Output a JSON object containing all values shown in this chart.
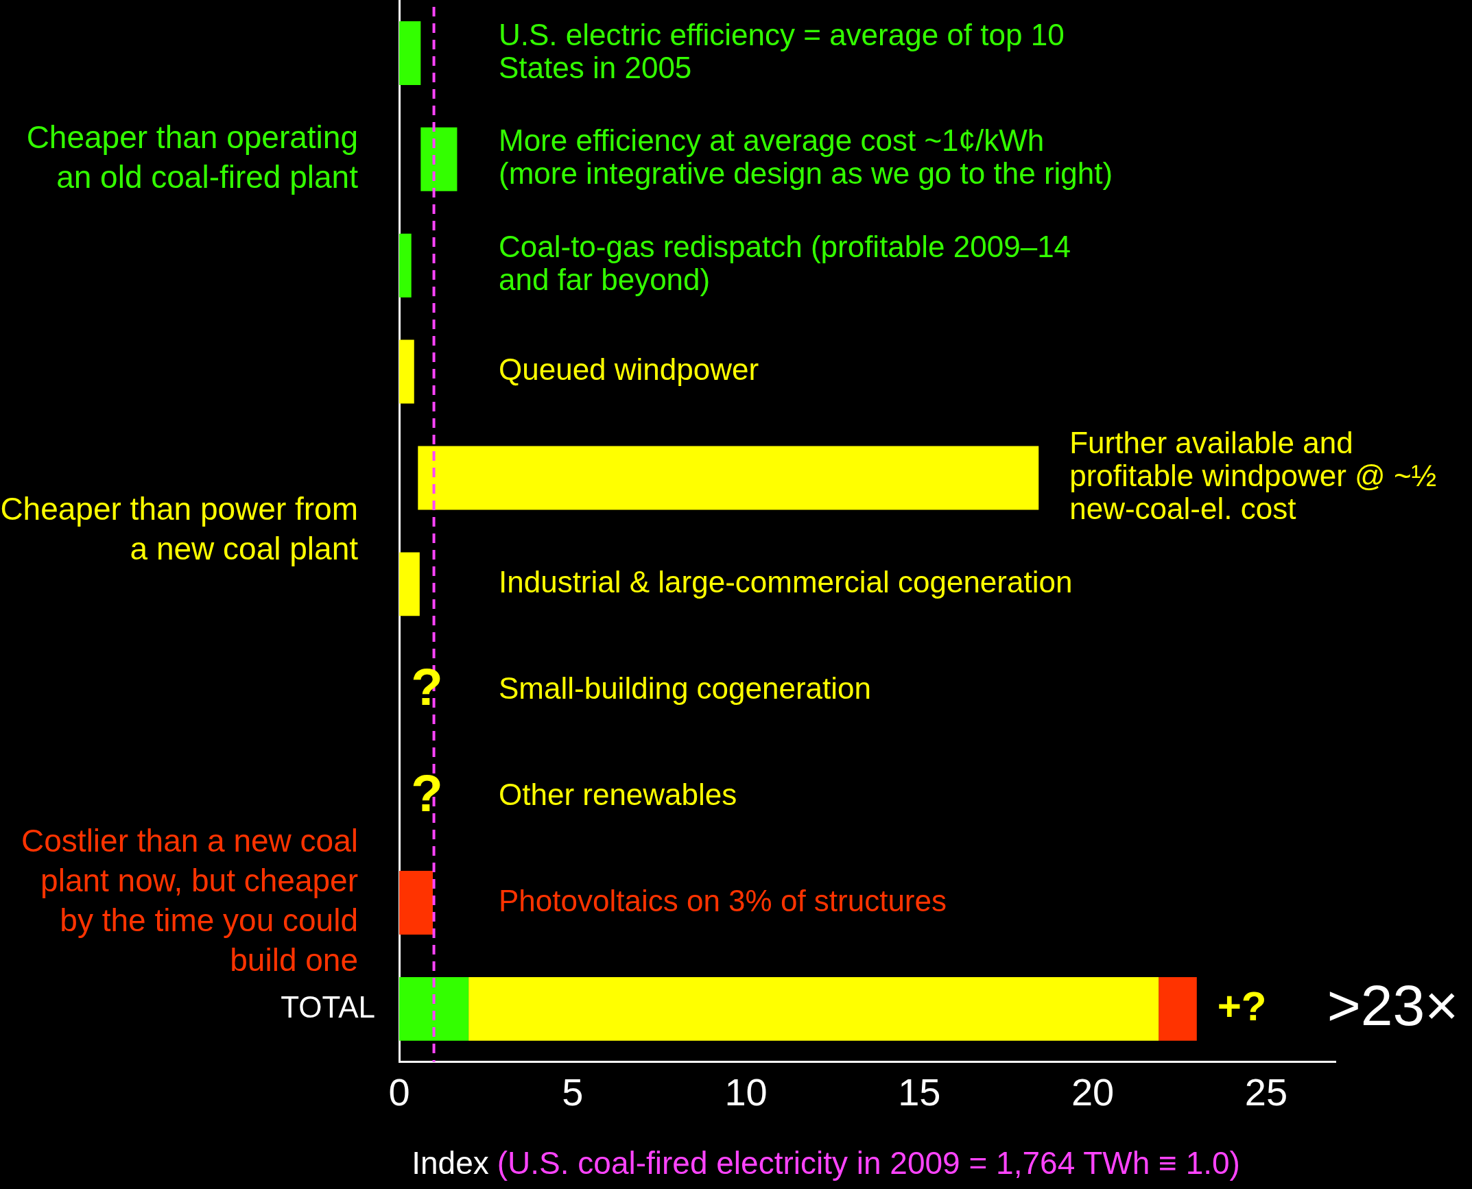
{
  "chart_data": {
    "type": "bar",
    "orientation": "horizontal",
    "categories": [
      "U.S. electric efficiency = average of top 10 States in 2005",
      "More efficiency at average cost ~1¢/kWh (more integrative design as we go to the right)",
      "Coal-to-gas redispatch (profitable 2009–14 and far beyond)",
      "Queued windpower",
      "Further available and profitable windpower @ ~½ new-coal-el. cost",
      "Industrial & large-commercial cogeneration",
      "Small-building cogeneration",
      "Other renewables",
      "Photovoltaics on 3% of structures",
      "TOTAL"
    ],
    "series": [
      {
        "color": "#33ff00",
        "values": [
          0.62,
          1.05,
          0.35,
          null,
          null,
          null,
          null,
          null,
          null,
          2.0
        ],
        "base": [
          0,
          0.62,
          0,
          null,
          null,
          null,
          null,
          null,
          null,
          0
        ]
      },
      {
        "color": "#ffff00",
        "values": [
          null,
          null,
          null,
          0.43,
          17.9,
          0.59,
          null,
          null,
          null,
          19.9
        ],
        "base": [
          null,
          null,
          null,
          0,
          0.54,
          0,
          null,
          null,
          null,
          2.0
        ]
      },
      {
        "color": "#ff3300",
        "values": [
          null,
          null,
          null,
          null,
          null,
          null,
          null,
          null,
          0.97,
          1.1
        ],
        "base": [
          null,
          null,
          null,
          null,
          null,
          null,
          null,
          null,
          0,
          21.9
        ]
      }
    ],
    "totals": [
      null,
      null,
      null,
      null,
      null,
      null,
      null,
      null,
      null,
      ">23×"
    ],
    "xlim": [
      0,
      27
    ],
    "xticks": [
      0,
      5,
      10,
      15,
      20,
      25
    ],
    "xlabel": "Index",
    "ref_lines": [
      {
        "axis": "x",
        "value": 1.0,
        "label": "(U.S. coal-fired electricity in 2009 = 1,764 TWh ≡ 1.0)",
        "color": "#ff44ff",
        "line_style": "dashed"
      }
    ],
    "annotations": [
      "Cheaper than operating an old coal-fired plant",
      "Cheaper than power from a new coal plant",
      "Costlier than a new coal plant now, but cheaper by the time you could build one",
      "?",
      "?",
      "+?"
    ],
    "grid": false,
    "legend": false
  }
}
